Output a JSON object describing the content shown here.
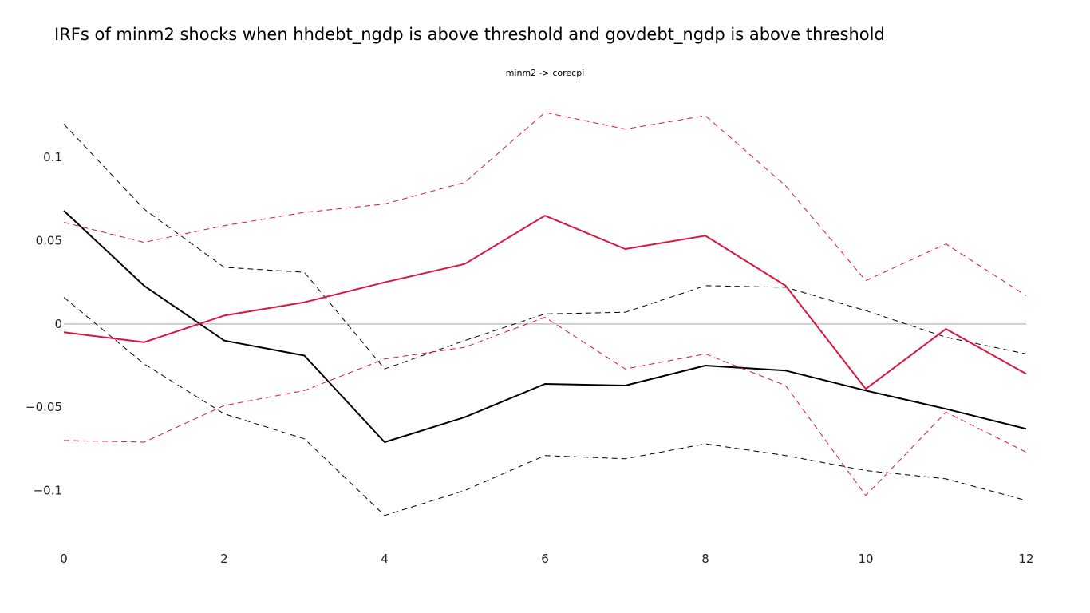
{
  "chart_data": {
    "type": "line",
    "title": "IRFs of minm2 shocks when hhdebt_ngdp is above threshold and govdebt_ngdp is above threshold",
    "subtitle": "minm2 -> corecpi",
    "xlabel": "",
    "ylabel": "",
    "x": [
      0,
      1,
      2,
      3,
      4,
      5,
      6,
      7,
      8,
      9,
      10,
      11,
      12
    ],
    "xlim": [
      0,
      12
    ],
    "ylim": [
      -0.129,
      0.137
    ],
    "x_ticks": [
      0,
      2,
      4,
      6,
      8,
      10,
      12
    ],
    "x_tick_labels": [
      "0",
      "2",
      "4",
      "6",
      "8",
      "10",
      "12"
    ],
    "y_ticks": [
      0.1,
      0.05,
      0,
      -0.05,
      -0.1
    ],
    "y_tick_labels": [
      "0.1",
      "0.05",
      "0",
      "−0.05",
      "−0.1"
    ],
    "grid": false,
    "zero_line": true,
    "legend": "none",
    "series": [
      {
        "style": "solid",
        "color": "#000000",
        "values": [
          0.068,
          0.023,
          -0.01,
          -0.019,
          -0.071,
          -0.056,
          -0.036,
          -0.037,
          -0.025,
          -0.028,
          -0.04,
          -0.051,
          -0.063
        ]
      },
      {
        "style": "dashed",
        "color": "#000000",
        "values": [
          0.12,
          0.069,
          0.034,
          0.031,
          -0.027,
          -0.01,
          0.006,
          0.007,
          0.023,
          0.022,
          0.008,
          -0.008,
          -0.018
        ]
      },
      {
        "style": "dashed",
        "color": "#000000",
        "values": [
          0.016,
          -0.024,
          -0.054,
          -0.069,
          -0.115,
          -0.1,
          -0.079,
          -0.081,
          -0.072,
          -0.079,
          -0.088,
          -0.093,
          -0.106
        ]
      },
      {
        "style": "solid",
        "color": "#dc143c",
        "values": [
          -0.005,
          -0.011,
          0.005,
          0.013,
          0.025,
          0.036,
          0.065,
          0.045,
          0.053,
          0.023,
          -0.039,
          -0.003,
          -0.03
        ]
      },
      {
        "style": "dashed",
        "color": "#dc143c",
        "values": [
          0.061,
          0.049,
          0.059,
          0.067,
          0.072,
          0.085,
          0.127,
          0.117,
          0.125,
          0.083,
          0.026,
          0.048,
          0.017
        ]
      },
      {
        "style": "dashed",
        "color": "#dc143c",
        "values": [
          -0.07,
          -0.071,
          -0.049,
          -0.04,
          -0.021,
          -0.014,
          0.004,
          -0.027,
          -0.018,
          -0.037,
          -0.103,
          -0.053,
          -0.077
        ]
      }
    ],
    "zero_line_color": "#c0c0c0"
  }
}
